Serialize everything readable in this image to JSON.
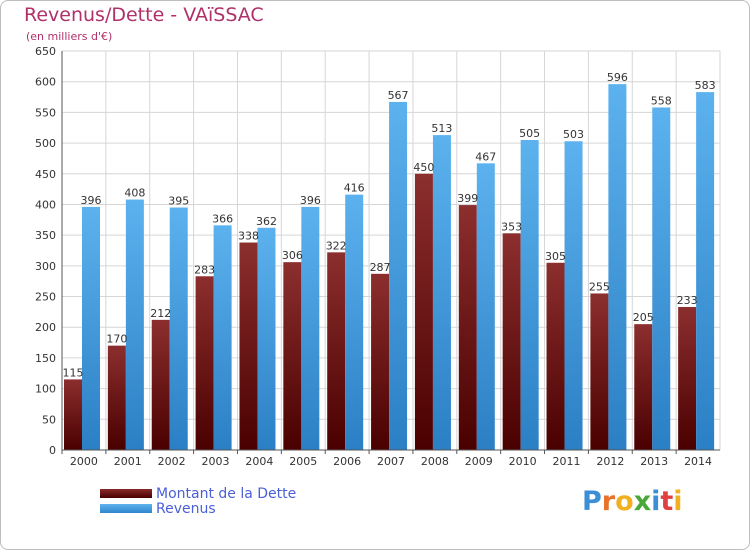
{
  "header": {
    "title": "Revenus/Dette - VAïSSAC",
    "subtitle": "(en milliers d'€)"
  },
  "legend": {
    "items": [
      {
        "label": "Montant de la Dette",
        "color": "#6b1515"
      },
      {
        "label": "Revenus",
        "color": "#3f9ae0"
      }
    ]
  },
  "logo": {
    "text": "Proxiti",
    "colors": [
      "#3a8fd6",
      "#e8722a",
      "#f0b020",
      "#4aa83a",
      "#3a8fd6",
      "#e04040",
      "#f0b020"
    ]
  },
  "chart_data": {
    "type": "bar",
    "title": "Revenus/Dette - VAïSSAC",
    "subtitle": "(en milliers d'€)",
    "categories": [
      "2000",
      "2001",
      "2002",
      "2003",
      "2004",
      "2005",
      "2006",
      "2007",
      "2008",
      "2009",
      "2010",
      "2011",
      "2012",
      "2013",
      "2014"
    ],
    "series": [
      {
        "name": "Montant de la Dette",
        "color": "#6b1515",
        "values": [
          115,
          170,
          212,
          283,
          338,
          306,
          322,
          287,
          450,
          399,
          353,
          305,
          255,
          205,
          233
        ]
      },
      {
        "name": "Revenus",
        "color": "#3f9ae0",
        "values": [
          396,
          408,
          395,
          366,
          362,
          396,
          416,
          567,
          513,
          467,
          505,
          503,
          596,
          558,
          583
        ]
      }
    ],
    "ylim": [
      0,
      650
    ],
    "yticks": [
      0,
      50,
      100,
      150,
      200,
      250,
      300,
      350,
      400,
      450,
      500,
      550,
      600,
      650
    ],
    "grid": true,
    "legend_position": "bottom-left"
  }
}
